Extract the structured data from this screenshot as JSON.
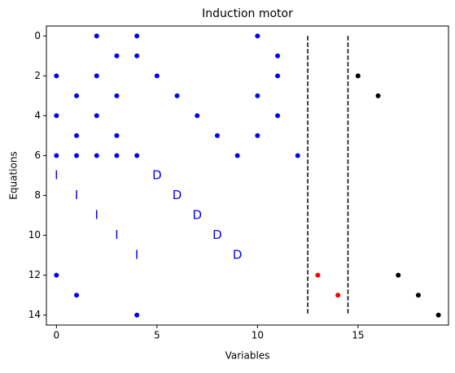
{
  "chart_data": {
    "type": "scatter",
    "title": "Induction motor",
    "xlabel": "Variables",
    "ylabel": "Equations",
    "xlim": [
      -0.5,
      19.5
    ],
    "ylim": [
      14.5,
      -0.5
    ],
    "xticks": [
      0,
      5,
      10,
      15
    ],
    "yticks": [
      0,
      2,
      4,
      6,
      8,
      10,
      12,
      14
    ],
    "series": [
      {
        "color": "#0000ff",
        "x": [
          2,
          4,
          10,
          3,
          4,
          11,
          0,
          2,
          5,
          11,
          1,
          3,
          6,
          10,
          0,
          2,
          7,
          11,
          1,
          3,
          8,
          10,
          0,
          1,
          2,
          3,
          4,
          9,
          12,
          0,
          1,
          4
        ],
        "y": [
          0,
          0,
          0,
          1,
          1,
          1,
          2,
          2,
          2,
          2,
          3,
          3,
          3,
          3,
          4,
          4,
          4,
          4,
          5,
          5,
          5,
          5,
          6,
          6,
          6,
          6,
          6,
          6,
          6,
          12,
          13,
          14
        ]
      },
      {
        "color": "#ff0000",
        "x": [
          13,
          14
        ],
        "y": [
          12,
          13
        ]
      },
      {
        "color": "#000000",
        "x": [
          15,
          16,
          17,
          18,
          19
        ],
        "y": [
          2,
          3,
          12,
          13,
          14
        ]
      }
    ],
    "annotations": [
      {
        "text": "I",
        "x": 0,
        "y": 7
      },
      {
        "text": "I",
        "x": 1,
        "y": 8
      },
      {
        "text": "I",
        "x": 2,
        "y": 9
      },
      {
        "text": "I",
        "x": 3,
        "y": 10
      },
      {
        "text": "I",
        "x": 4,
        "y": 11
      },
      {
        "text": "D",
        "x": 5,
        "y": 7
      },
      {
        "text": "D",
        "x": 6,
        "y": 8
      },
      {
        "text": "D",
        "x": 7,
        "y": 9
      },
      {
        "text": "D",
        "x": 8,
        "y": 10
      },
      {
        "text": "D",
        "x": 9,
        "y": 11
      }
    ],
    "annotation_color": "#0000ff",
    "vlines": [
      {
        "x": 12.5,
        "ymin": 0,
        "ymax": 14
      },
      {
        "x": 14.5,
        "ymin": 0,
        "ymax": 14
      }
    ]
  }
}
